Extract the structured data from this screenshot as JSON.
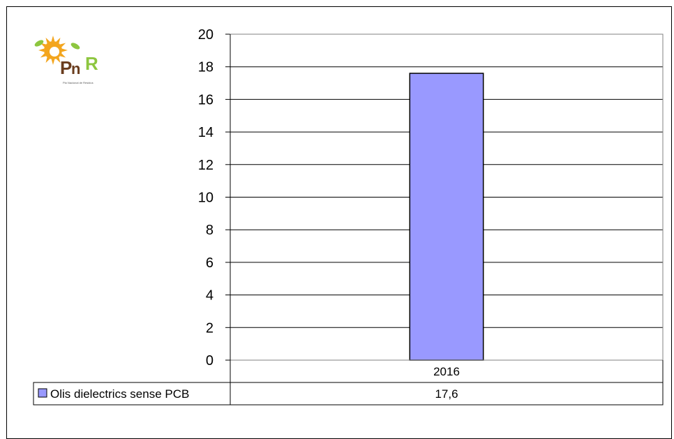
{
  "logo": {
    "mark_p": "P",
    "mark_n": "n",
    "mark_r": "R",
    "tagline": "Pla Nacional de Residus",
    "colors": {
      "sun": "#f3a51d",
      "leaf": "#8dc63f",
      "text": "#6a3d1e"
    }
  },
  "chart_data": {
    "type": "bar",
    "categories": [
      "2016"
    ],
    "series": [
      {
        "name": "Olis dielectrics sense PCB",
        "values": [
          17.6
        ],
        "color": "#9999ff"
      }
    ],
    "y_ticks": [
      0,
      2,
      4,
      6,
      8,
      10,
      12,
      14,
      16,
      18,
      20
    ],
    "ylim": [
      0,
      20
    ],
    "grid": true,
    "legend_placement": "data-table-left",
    "data_table": {
      "header": "2016",
      "row_label": "Olis dielectrics sense PCB",
      "value_text": "17,6"
    }
  }
}
